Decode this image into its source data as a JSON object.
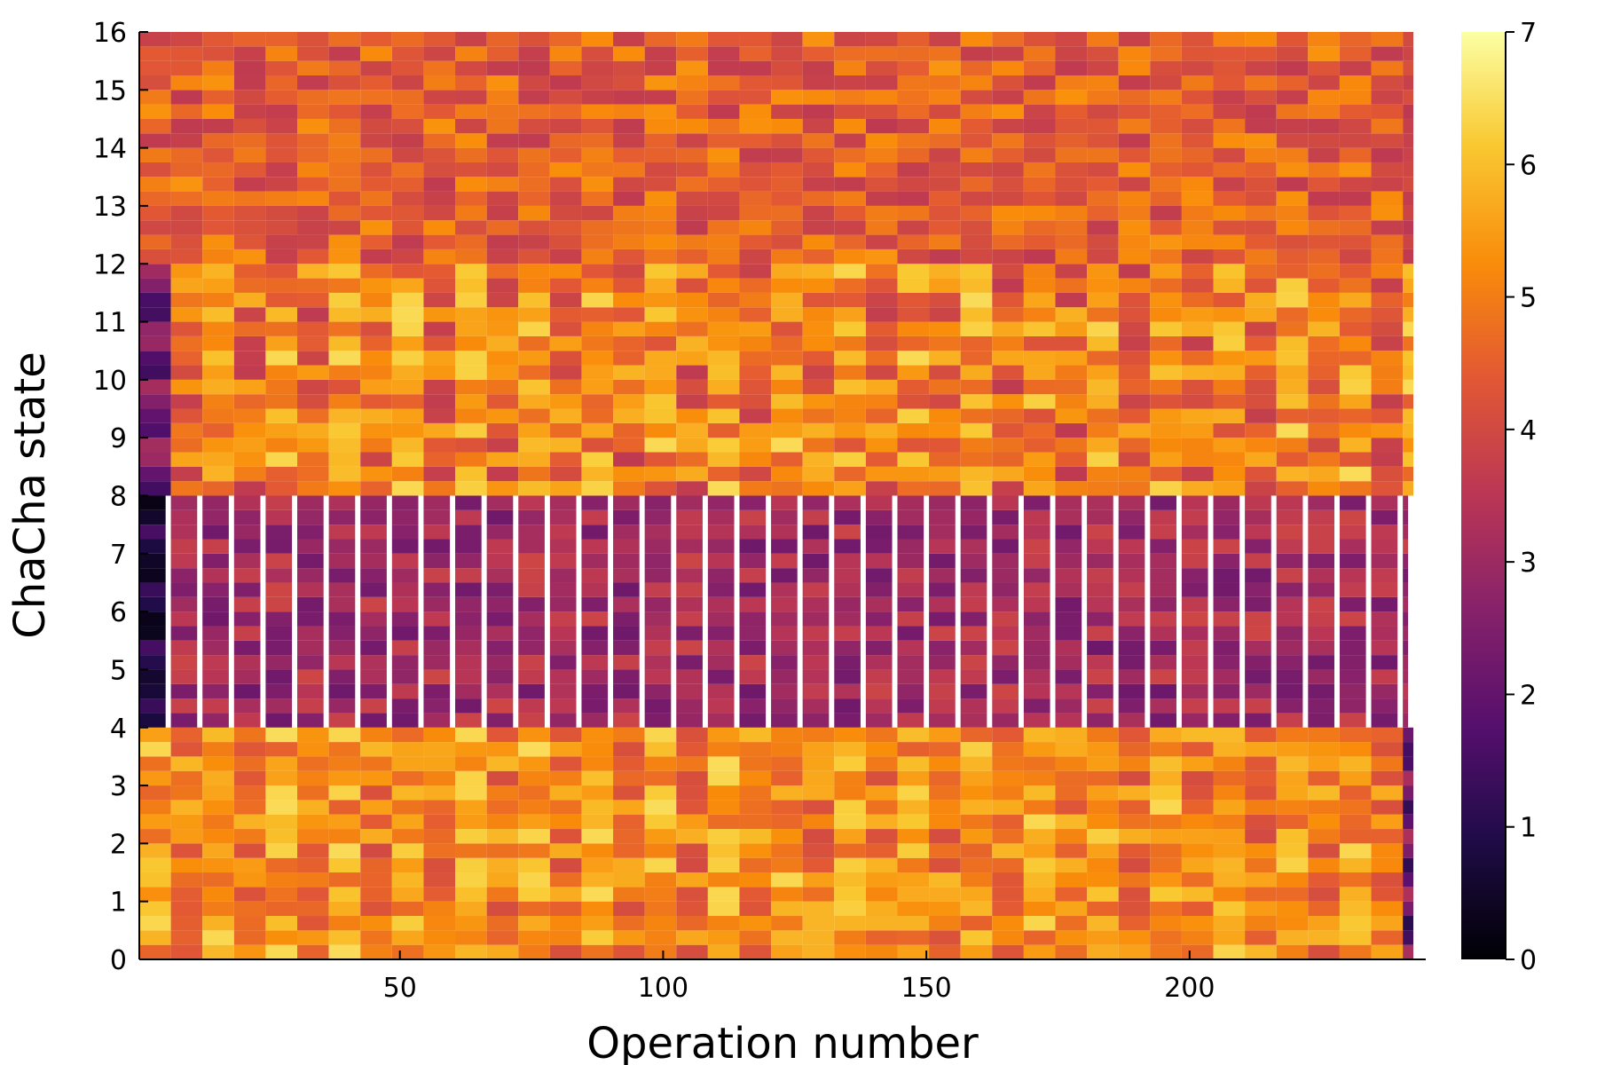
{
  "chart_data": {
    "type": "heatmap",
    "title": "",
    "xlabel": "Operation number",
    "ylabel": "ChaCha state",
    "xlim": [
      0.5,
      242.5
    ],
    "ylim": [
      0,
      16
    ],
    "x_ticks": [
      50,
      100,
      150,
      200
    ],
    "y_ticks": [
      0,
      1,
      2,
      3,
      4,
      5,
      6,
      7,
      8,
      9,
      10,
      11,
      12,
      13,
      14,
      15,
      16
    ],
    "colorbar": {
      "colormap": "inferno",
      "range": [
        0,
        7
      ],
      "ticks": [
        0,
        1,
        2,
        3,
        4,
        5,
        6,
        7
      ]
    },
    "grid": false,
    "legend": "none",
    "cell_rows_per_state": 4,
    "cell_width_ops": 6,
    "regions": [
      {
        "states": [
          0,
          4
        ],
        "value_range": [
          4.0,
          6.6
        ],
        "bright_column_period_ops": 12,
        "edge_column_values": [
          3.0,
          1.4,
          1.0,
          2.0
        ],
        "description_values_low_edge": "ops 242 low (1.0-2.0)"
      },
      {
        "states": [
          4,
          8
        ],
        "value_range": [
          2.2,
          4.5
        ],
        "gap_column_period_ops": 6,
        "first_column_values": [
          0.6,
          1.2,
          0.3,
          0.2
        ]
      },
      {
        "states": [
          8,
          12
        ],
        "value_range": [
          3.6,
          6.6
        ],
        "bright_column_period_ops": 12,
        "first_column_values": [
          1.2,
          1.5,
          2.5,
          2.8
        ]
      },
      {
        "states": [
          12,
          16
        ],
        "value_range": [
          3.6,
          6.0
        ],
        "last_column_values": [
          3.5,
          3.7
        ]
      }
    ]
  }
}
